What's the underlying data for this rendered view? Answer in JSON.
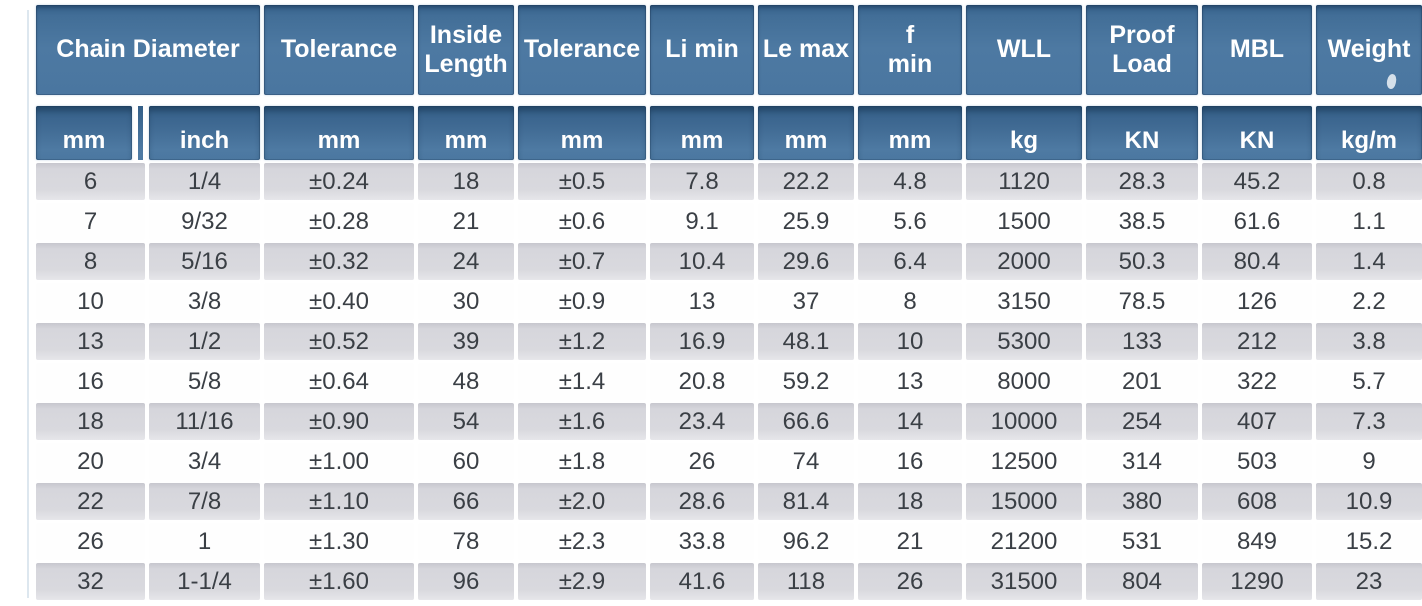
{
  "colors": {
    "header_blue": "#4c79a2",
    "header_blue_dark": "#35608a",
    "row_gray": "#d8d8de",
    "row_white": "#fefefe",
    "data_text": "#3a3f45",
    "header_text": "#ffffff",
    "background": "#ffffff"
  },
  "chart_data": {
    "type": "table",
    "header_labels": [
      "Chain Diameter",
      "Tolerance",
      "Inside\nLength",
      "Tolerance",
      "Li min",
      "Le max",
      "f\nmin",
      "WLL",
      "Proof\nLoad",
      "MBL",
      "Weight"
    ],
    "unit_labels": [
      "mm",
      "inch",
      "mm",
      "mm",
      "mm",
      "mm",
      "mm",
      "mm",
      "kg",
      "KN",
      "KN",
      "kg/m"
    ],
    "rows": [
      [
        "6",
        "1/4",
        "±0.24",
        "18",
        "±0.5",
        "7.8",
        "22.2",
        "4.8",
        "1120",
        "28.3",
        "45.2",
        "0.8"
      ],
      [
        "7",
        "9/32",
        "±0.28",
        "21",
        "±0.6",
        "9.1",
        "25.9",
        "5.6",
        "1500",
        "38.5",
        "61.6",
        "1.1"
      ],
      [
        "8",
        "5/16",
        "±0.32",
        "24",
        "±0.7",
        "10.4",
        "29.6",
        "6.4",
        "2000",
        "50.3",
        "80.4",
        "1.4"
      ],
      [
        "10",
        "3/8",
        "±0.40",
        "30",
        "±0.9",
        "13",
        "37",
        "8",
        "3150",
        "78.5",
        "126",
        "2.2"
      ],
      [
        "13",
        "1/2",
        "±0.52",
        "39",
        "±1.2",
        "16.9",
        "48.1",
        "10",
        "5300",
        "133",
        "212",
        "3.8"
      ],
      [
        "16",
        "5/8",
        "±0.64",
        "48",
        "±1.4",
        "20.8",
        "59.2",
        "13",
        "8000",
        "201",
        "322",
        "5.7"
      ],
      [
        "18",
        "11/16",
        "±0.90",
        "54",
        "±1.6",
        "23.4",
        "66.6",
        "14",
        "10000",
        "254",
        "407",
        "7.3"
      ],
      [
        "20",
        "3/4",
        "±1.00",
        "60",
        "±1.8",
        "26",
        "74",
        "16",
        "12500",
        "314",
        "503",
        "9"
      ],
      [
        "22",
        "7/8",
        "±1.10",
        "66",
        "±2.0",
        "28.6",
        "81.4",
        "18",
        "15000",
        "380",
        "608",
        "10.9"
      ],
      [
        "26",
        "1",
        "±1.30",
        "78",
        "±2.3",
        "33.8",
        "96.2",
        "21",
        "21200",
        "531",
        "849",
        "15.2"
      ],
      [
        "32",
        "1-1/4",
        "±1.60",
        "96",
        "±2.9",
        "41.6",
        "118",
        "26",
        "31500",
        "804",
        "1290",
        "23"
      ]
    ]
  }
}
